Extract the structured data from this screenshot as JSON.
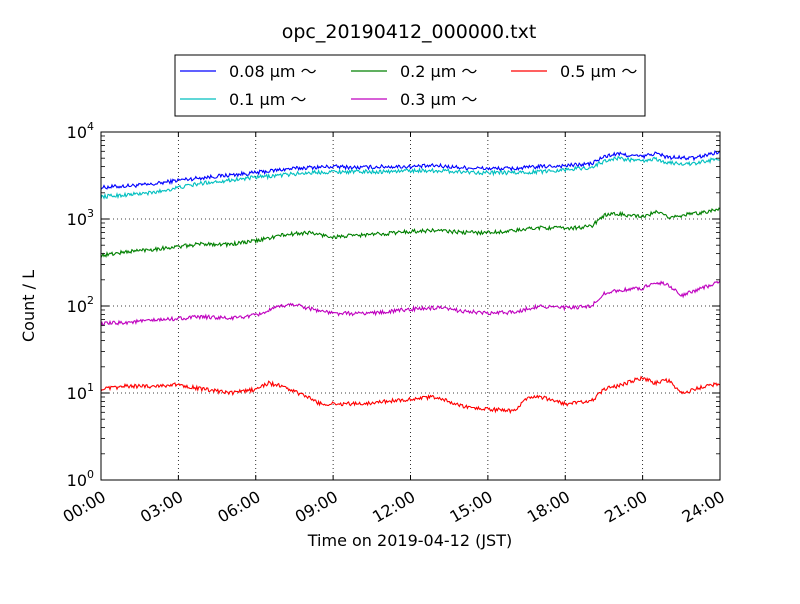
{
  "chart_data": {
    "type": "line",
    "title": "opc_20190412_000000.txt",
    "xlabel": "Time on 2019-04-12 (JST)",
    "ylabel": "Count / L",
    "yscale": "log",
    "ylim": [
      1,
      10000
    ],
    "xlim": [
      "00:00",
      "24:00"
    ],
    "grid": true,
    "legend_position": "top",
    "x_ticks": [
      "00:00",
      "03:00",
      "06:00",
      "09:00",
      "12:00",
      "15:00",
      "18:00",
      "21:00",
      "24:00"
    ],
    "y_ticks": [
      {
        "base": "10",
        "exp": "0",
        "value": 1
      },
      {
        "base": "10",
        "exp": "1",
        "value": 10
      },
      {
        "base": "10",
        "exp": "2",
        "value": 100
      },
      {
        "base": "10",
        "exp": "3",
        "value": 1000
      },
      {
        "base": "10",
        "exp": "4",
        "value": 10000
      }
    ],
    "series": [
      {
        "name": "0.08 μm ～",
        "color": "#0000ff",
        "x": [
          "00:00",
          "01:00",
          "02:00",
          "03:00",
          "04:00",
          "05:00",
          "06:00",
          "07:00",
          "08:00",
          "09:00",
          "10:00",
          "11:00",
          "12:00",
          "13:00",
          "14:00",
          "15:00",
          "16:00",
          "17:00",
          "18:00",
          "19:00",
          "19:30",
          "20:00",
          "21:00",
          "21:30",
          "22:00",
          "23:00",
          "24:00"
        ],
        "values": [
          2300,
          2400,
          2500,
          2800,
          3000,
          3200,
          3400,
          3700,
          3900,
          4000,
          3900,
          4000,
          4000,
          4100,
          3900,
          3800,
          3800,
          4000,
          4100,
          4300,
          5200,
          5600,
          5200,
          5700,
          5100,
          5000,
          6000
        ]
      },
      {
        "name": "0.1 μm ～",
        "color": "#00bfbf",
        "x": [
          "00:00",
          "01:00",
          "02:00",
          "03:00",
          "04:00",
          "05:00",
          "06:00",
          "07:00",
          "08:00",
          "09:00",
          "10:00",
          "11:00",
          "12:00",
          "13:00",
          "14:00",
          "15:00",
          "16:00",
          "17:00",
          "18:00",
          "19:00",
          "19:30",
          "20:00",
          "21:00",
          "21:30",
          "22:00",
          "23:00",
          "24:00"
        ],
        "values": [
          1800,
          1900,
          2000,
          2300,
          2600,
          2800,
          3000,
          3200,
          3400,
          3500,
          3500,
          3500,
          3600,
          3600,
          3500,
          3400,
          3400,
          3500,
          3700,
          3900,
          4600,
          5000,
          4600,
          4900,
          4400,
          4300,
          5000
        ]
      },
      {
        "name": "0.2 μm ～",
        "color": "#008000",
        "x": [
          "00:00",
          "01:00",
          "02:00",
          "03:00",
          "04:00",
          "05:00",
          "06:00",
          "07:00",
          "08:00",
          "09:00",
          "10:00",
          "11:00",
          "12:00",
          "13:00",
          "14:00",
          "15:00",
          "16:00",
          "17:00",
          "18:00",
          "19:00",
          "19:30",
          "20:00",
          "21:00",
          "21:30",
          "22:00",
          "23:00",
          "24:00"
        ],
        "values": [
          380,
          420,
          450,
          480,
          520,
          510,
          560,
          650,
          700,
          620,
          650,
          680,
          720,
          740,
          700,
          700,
          730,
          800,
          780,
          820,
          1100,
          1150,
          1050,
          1200,
          1050,
          1150,
          1300
        ]
      },
      {
        "name": "0.3 μm ～",
        "color": "#bf00bf",
        "x": [
          "00:00",
          "01:00",
          "02:00",
          "03:00",
          "04:00",
          "05:00",
          "06:00",
          "07:00",
          "07:30",
          "08:00",
          "09:00",
          "10:00",
          "11:00",
          "12:00",
          "13:00",
          "14:00",
          "15:00",
          "16:00",
          "17:00",
          "18:00",
          "19:00",
          "19:30",
          "20:00",
          "21:00",
          "21:30",
          "22:00",
          "22:30",
          "23:00",
          "24:00"
        ],
        "values": [
          62,
          65,
          68,
          72,
          75,
          72,
          78,
          100,
          105,
          95,
          82,
          82,
          85,
          92,
          95,
          88,
          82,
          85,
          100,
          95,
          98,
          140,
          150,
          160,
          190,
          175,
          130,
          150,
          190
        ]
      },
      {
        "name": "0.5 μm ～",
        "color": "#ff0000",
        "x": [
          "00:00",
          "01:00",
          "02:00",
          "03:00",
          "04:00",
          "05:00",
          "06:00",
          "06:30",
          "07:00",
          "08:00",
          "08:30",
          "09:00",
          "10:00",
          "11:00",
          "12:00",
          "13:00",
          "14:00",
          "15:00",
          "16:00",
          "16:30",
          "17:00",
          "18:00",
          "19:00",
          "19:30",
          "20:00",
          "21:00",
          "21:30",
          "22:00",
          "22:30",
          "23:00",
          "24:00"
        ],
        "values": [
          11,
          12,
          12,
          12.5,
          11,
          10,
          11,
          13,
          12,
          9,
          7.5,
          7.5,
          7.5,
          8,
          8.5,
          9,
          7,
          6.5,
          6.2,
          8.5,
          9,
          7.5,
          8,
          11,
          12,
          15,
          13,
          14,
          10,
          11,
          13
        ]
      }
    ]
  }
}
